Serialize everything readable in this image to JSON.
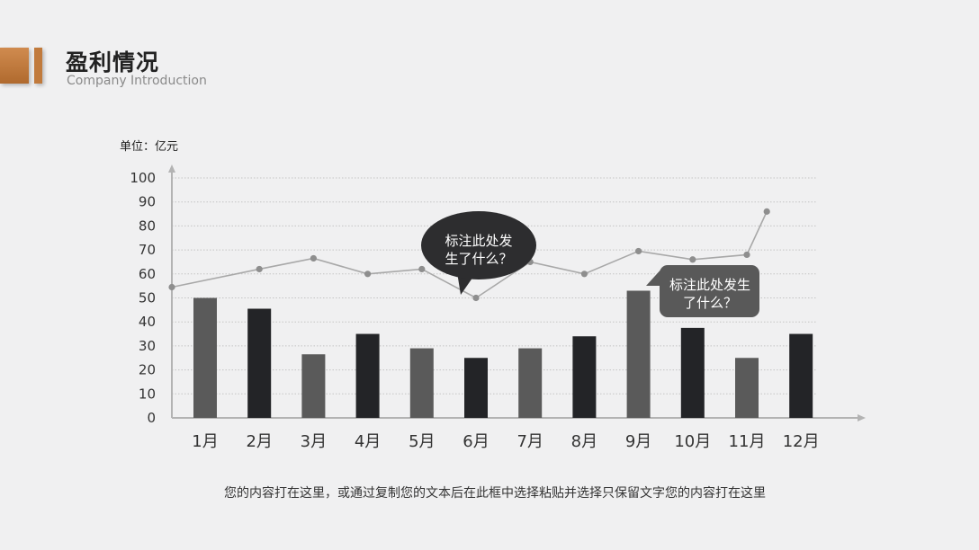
{
  "header": {
    "title": "盈利情况",
    "subtitle": "Company Introduction"
  },
  "colors": {
    "accent": "#c17a3c",
    "bar_dark": "#232427",
    "bar_gray": "#5a5a5a",
    "line": "#a8a8a8",
    "callout": "#2d2d2f",
    "callout_gray": "#595959"
  },
  "chart_data": {
    "type": "bar",
    "unit_label": "单位：亿元",
    "categories": [
      "1月",
      "2月",
      "3月",
      "4月",
      "5月",
      "6月",
      "7月",
      "8月",
      "9月",
      "10月",
      "11月",
      "12月"
    ],
    "series": [
      {
        "type": "bar",
        "values": [
          50,
          45.5,
          26.5,
          35,
          29,
          25,
          29,
          34,
          53,
          37.5,
          25,
          35
        ],
        "colors": [
          "gray",
          "dark",
          "gray",
          "dark",
          "gray",
          "dark",
          "gray",
          "dark",
          "gray",
          "dark",
          "gray",
          "dark"
        ]
      },
      {
        "type": "line",
        "values": [
          54.5,
          62,
          66.5,
          60,
          62,
          50,
          65,
          60,
          69.5,
          66,
          68,
          86
        ]
      }
    ],
    "yticks": [
      "0",
      "10",
      "20",
      "30",
      "40",
      "50",
      "60",
      "70",
      "80",
      "90",
      "100"
    ],
    "ylim": [
      0,
      100
    ],
    "grid": true,
    "annotations": [
      {
        "text_lines": [
          "标注此处发",
          "生了什么？"
        ],
        "style": "dark-ellipse"
      },
      {
        "text_lines": [
          "标注此处发生",
          "了什么？"
        ],
        "style": "gray-rect"
      }
    ]
  },
  "caption": "您的内容打在这里，或通过复制您的文本后在此框中选择粘贴并选择只保留文字您的内容打在这里"
}
